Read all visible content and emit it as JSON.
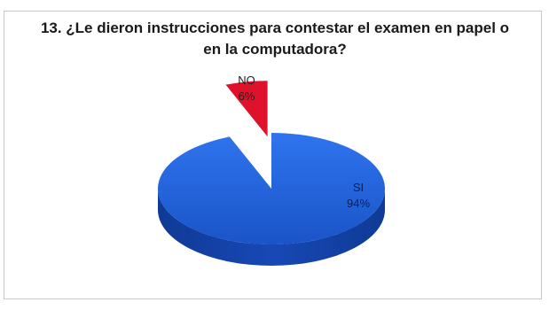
{
  "chart_data": {
    "type": "pie",
    "title": "13. ¿Le dieron instrucciones para contestar el examen en papel o en la computadora?",
    "slices": [
      {
        "label": "SI",
        "value": 94,
        "value_label": "94%",
        "color": "#1f5fd6"
      },
      {
        "label": "NO",
        "value": 6,
        "value_label": "6%",
        "color": "#e0112b"
      }
    ],
    "style": "3d-exploded",
    "legend": "none"
  }
}
